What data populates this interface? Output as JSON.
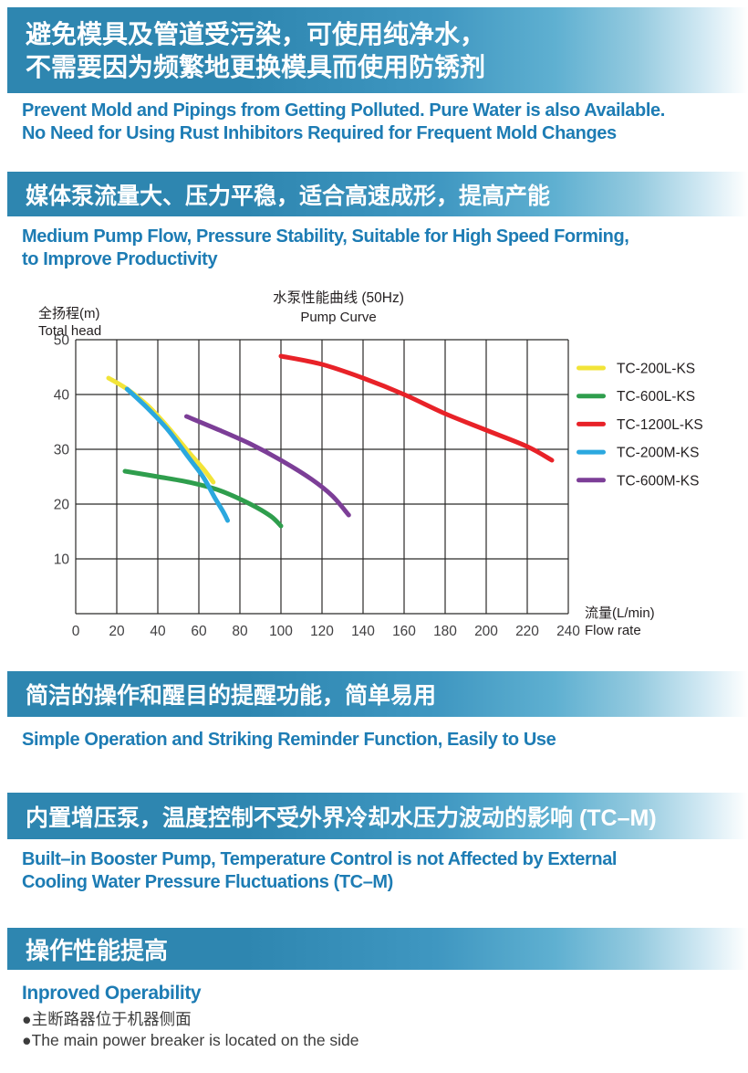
{
  "colors": {
    "banner_solid": "#2e86b0",
    "banner_fade_end": "#ffffff",
    "heading_blue": "#1d7cb4",
    "body_text": "#3c3c3c",
    "grid_line": "#2b2a29",
    "tick_label": "#414042"
  },
  "sections": {
    "s1": {
      "banner": [
        "避免模具及管道受污染，可使用纯净水，",
        "不需要因为频繁地更换模具而使用防锈剂"
      ],
      "subtitle": [
        "Prevent Mold and Pipings from Getting Polluted. Pure Water is also Available.",
        "No Need for Using Rust Inhibitors Required for Frequent Mold Changes"
      ]
    },
    "s2": {
      "banner": [
        "媒体泵流量大、压力平稳，适合高速成形，提高产能"
      ],
      "subtitle": [
        "Medium Pump Flow, Pressure Stability, Suitable for High Speed Forming,",
        "to Improve Productivity"
      ]
    },
    "s3": {
      "banner": [
        "简洁的操作和醒目的提醒功能，简单易用"
      ],
      "subtitle": [
        "Simple Operation and Striking Reminder Function, Easily to Use"
      ]
    },
    "s4": {
      "banner": [
        "内置增压泵，温度控制不受外界冷却水压力波动的影响 (TC–M)"
      ],
      "subtitle": [
        "Built–in Booster Pump, Temperature Control is not Affected by External",
        "Cooling Water Pressure Fluctuations (TC–M)"
      ]
    },
    "s5": {
      "banner": [
        "操作性能提高"
      ],
      "subtitle": [
        "Inproved Operability"
      ],
      "bullets": [
        "●主断路器位于机器侧面",
        "●The main power breaker is located on the side"
      ]
    }
  },
  "chart_data": {
    "type": "line",
    "title_zh": "水泵性能曲线 (50Hz)",
    "title_en": "Pump Curve",
    "y_axis_label_zh": "全扬程(m)",
    "y_axis_label_en": "Total head",
    "x_axis_label_zh": "流量(L/min)",
    "x_axis_label_en": "Flow rate",
    "xlim": [
      0,
      240
    ],
    "ylim": [
      0,
      50
    ],
    "x_ticks": [
      0,
      20,
      40,
      60,
      80,
      100,
      120,
      140,
      160,
      180,
      200,
      220,
      240
    ],
    "y_ticks_labeled": [
      10,
      20,
      30,
      40,
      50
    ],
    "y_gridlines": [
      0,
      10,
      20,
      30,
      40,
      50
    ],
    "grid": true,
    "legend_position": "right",
    "series": [
      {
        "name": "TC-200L-KS",
        "color": "#f2e438",
        "z": 2,
        "points": [
          [
            16,
            43
          ],
          [
            25,
            41
          ],
          [
            35,
            38
          ],
          [
            45,
            34
          ],
          [
            55,
            29.5
          ],
          [
            62,
            26.5
          ],
          [
            67,
            24
          ]
        ]
      },
      {
        "name": "TC-600L-KS",
        "color": "#2f9e4d",
        "z": 1,
        "points": [
          [
            24,
            26
          ],
          [
            40,
            25
          ],
          [
            55,
            24
          ],
          [
            70,
            22.5
          ],
          [
            85,
            20
          ],
          [
            95,
            17.8
          ],
          [
            100,
            16
          ]
        ]
      },
      {
        "name": "TC-1200L-KS",
        "color": "#e82228",
        "z": 3,
        "points": [
          [
            100,
            47
          ],
          [
            120,
            45.5
          ],
          [
            140,
            43
          ],
          [
            160,
            40
          ],
          [
            180,
            36.5
          ],
          [
            200,
            33.5
          ],
          [
            220,
            30.5
          ],
          [
            232,
            28
          ]
        ]
      },
      {
        "name": "TC-200M-KS",
        "color": "#2ba8df",
        "z": 5,
        "points": [
          [
            25,
            41
          ],
          [
            35,
            37.5
          ],
          [
            45,
            33.5
          ],
          [
            55,
            28.5
          ],
          [
            62,
            25
          ],
          [
            68,
            21
          ],
          [
            72,
            18.5
          ],
          [
            74,
            17
          ]
        ]
      },
      {
        "name": "TC-600M-KS",
        "color": "#7c3e97",
        "z": 4,
        "points": [
          [
            54,
            36
          ],
          [
            70,
            33.5
          ],
          [
            85,
            31
          ],
          [
            100,
            28
          ],
          [
            115,
            24.5
          ],
          [
            125,
            21.5
          ],
          [
            133,
            18
          ]
        ]
      }
    ]
  }
}
